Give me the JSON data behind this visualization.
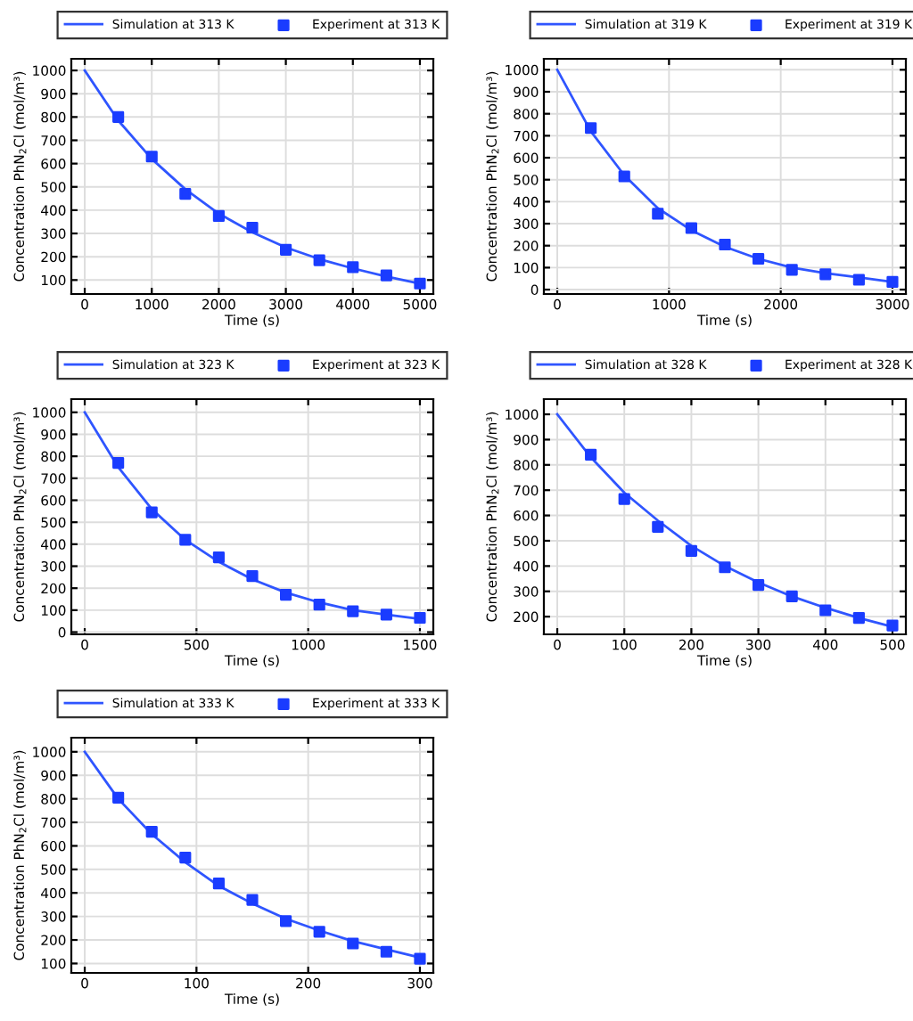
{
  "chart_data": [
    {
      "type": "line",
      "xlabel": "Time (s)",
      "ylabel": "Concentration PhN$_{2}$Cl (mol/m³)",
      "xlim": [
        -200,
        5200
      ],
      "ylim": [
        40,
        1050
      ],
      "xticks": [
        0,
        1000,
        2000,
        3000,
        4000,
        5000
      ],
      "yticks": [
        100,
        200,
        300,
        400,
        500,
        600,
        700,
        800,
        900,
        1000
      ],
      "grid": true,
      "legend": "top",
      "series": [
        {
          "name": "Simulation at 313 K",
          "color": "#2f55ff",
          "line_style": "solid",
          "x": [
            0,
            500,
            1000,
            1500,
            2000,
            2500,
            3000,
            3500,
            4000,
            4500,
            5000
          ],
          "values": [
            1000,
            785,
            620,
            490,
            385,
            305,
            240,
            190,
            150,
            115,
            85
          ]
        },
        {
          "name": "Experiment at 313 K",
          "type": "scatter",
          "color": "#1a3cff",
          "marker": "square",
          "x": [
            500,
            1000,
            1500,
            2000,
            2500,
            3000,
            3500,
            4000,
            4500,
            5000
          ],
          "values": [
            800,
            630,
            470,
            375,
            325,
            230,
            185,
            155,
            120,
            85
          ]
        }
      ]
    },
    {
      "type": "line",
      "xlabel": "Time (s)",
      "ylabel": "Concentration PhN$_{2}$Cl (mol/m³)",
      "xlim": [
        -120,
        3120
      ],
      "ylim": [
        -20,
        1050
      ],
      "xticks": [
        0,
        1000,
        2000,
        3000
      ],
      "yticks": [
        0,
        100,
        200,
        300,
        400,
        500,
        600,
        700,
        800,
        900,
        1000
      ],
      "grid": true,
      "legend": "top",
      "series": [
        {
          "name": "Simulation at 319 K",
          "color": "#2f55ff",
          "line_style": "solid",
          "x": [
            0,
            300,
            600,
            900,
            1200,
            1500,
            1800,
            2100,
            2400,
            2700,
            3000
          ],
          "values": [
            1000,
            720,
            520,
            370,
            270,
            195,
            140,
            100,
            75,
            55,
            35
          ]
        },
        {
          "name": "Experiment at 319 K",
          "type": "scatter",
          "color": "#1a3cff",
          "marker": "square",
          "x": [
            300,
            600,
            900,
            1200,
            1500,
            1800,
            2100,
            2400,
            2700,
            3000
          ],
          "values": [
            735,
            515,
            345,
            280,
            205,
            140,
            90,
            70,
            45,
            35
          ]
        }
      ]
    },
    {
      "type": "line",
      "xlabel": "Time (s)",
      "ylabel": "Concentration PhN$_{2}$Cl (mol/m³)",
      "xlim": [
        -60,
        1560
      ],
      "ylim": [
        -10,
        1060
      ],
      "xticks": [
        0,
        500,
        1000,
        1500
      ],
      "yticks": [
        0,
        100,
        200,
        300,
        400,
        500,
        600,
        700,
        800,
        900,
        1000
      ],
      "grid": true,
      "legend": "top",
      "series": [
        {
          "name": "Simulation at 323 K",
          "color": "#2f55ff",
          "line_style": "solid",
          "x": [
            0,
            150,
            300,
            450,
            600,
            750,
            900,
            1050,
            1200,
            1350,
            1500
          ],
          "values": [
            1000,
            750,
            560,
            420,
            320,
            240,
            180,
            135,
            100,
            80,
            60
          ]
        },
        {
          "name": "Experiment at 323 K",
          "type": "scatter",
          "color": "#1a3cff",
          "marker": "square",
          "x": [
            150,
            300,
            450,
            600,
            750,
            900,
            1050,
            1200,
            1350,
            1500
          ],
          "values": [
            770,
            545,
            420,
            340,
            255,
            170,
            125,
            95,
            80,
            65
          ]
        }
      ]
    },
    {
      "type": "line",
      "xlabel": "Time (s)",
      "ylabel": "Concentration PhN$_{2}$Cl (mol/m³)",
      "xlim": [
        -20,
        520
      ],
      "ylim": [
        130,
        1060
      ],
      "xticks": [
        0,
        100,
        200,
        300,
        400,
        500
      ],
      "yticks": [
        200,
        300,
        400,
        500,
        600,
        700,
        800,
        900,
        1000
      ],
      "grid": true,
      "legend": "top",
      "series": [
        {
          "name": "Simulation at 328 K",
          "color": "#2f55ff",
          "line_style": "solid",
          "x": [
            0,
            50,
            100,
            150,
            200,
            250,
            300,
            350,
            400,
            450,
            500
          ],
          "values": [
            1000,
            830,
            690,
            580,
            480,
            400,
            335,
            280,
            235,
            195,
            160
          ]
        },
        {
          "name": "Experiment at 328 K",
          "type": "scatter",
          "color": "#1a3cff",
          "marker": "square",
          "x": [
            50,
            100,
            150,
            200,
            250,
            300,
            350,
            400,
            450,
            500
          ],
          "values": [
            840,
            665,
            555,
            460,
            395,
            325,
            280,
            225,
            195,
            165
          ]
        }
      ]
    },
    {
      "type": "line",
      "xlabel": "Time (s)",
      "ylabel": "Concentration PhN$_{2}$Cl (mol/m³)",
      "xlim": [
        -12,
        312
      ],
      "ylim": [
        60,
        1060
      ],
      "xticks": [
        0,
        100,
        200,
        300
      ],
      "yticks": [
        100,
        200,
        300,
        400,
        500,
        600,
        700,
        800,
        900,
        1000
      ],
      "grid": true,
      "legend": "top",
      "series": [
        {
          "name": "Simulation at 333 K",
          "color": "#2f55ff",
          "line_style": "solid",
          "x": [
            0,
            30,
            60,
            90,
            120,
            150,
            180,
            210,
            240,
            270,
            300
          ],
          "values": [
            1000,
            800,
            650,
            530,
            430,
            355,
            290,
            240,
            195,
            160,
            125
          ]
        },
        {
          "name": "Experiment at 333 K",
          "type": "scatter",
          "color": "#1a3cff",
          "marker": "square",
          "x": [
            30,
            60,
            90,
            120,
            150,
            180,
            210,
            240,
            270,
            300
          ],
          "values": [
            805,
            660,
            550,
            440,
            370,
            280,
            235,
            185,
            150,
            120
          ]
        }
      ]
    }
  ]
}
